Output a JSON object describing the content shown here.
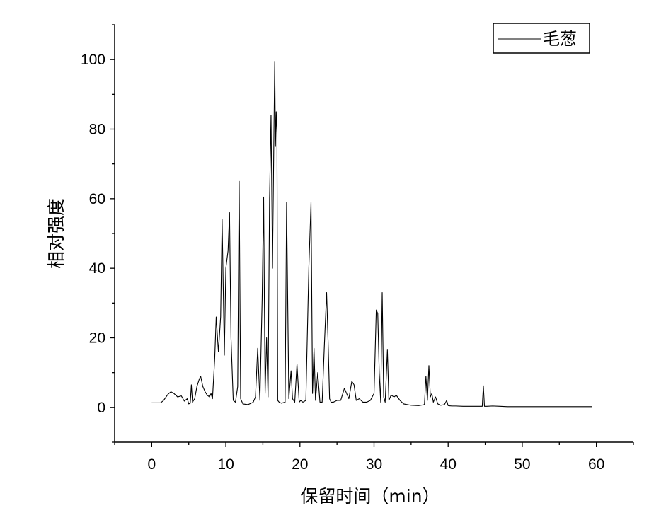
{
  "chart_data": {
    "type": "line",
    "xlabel": "保留时间（min）",
    "ylabel": "相对强度",
    "xlim": [
      -5,
      65
    ],
    "ylim": [
      -10,
      110
    ],
    "xticks": [
      0,
      10,
      20,
      30,
      40,
      50,
      60
    ],
    "yticks": [
      0,
      20,
      40,
      60,
      80,
      100
    ],
    "grid": false,
    "legend_position": "top-right",
    "series": [
      {
        "name": "毛葱",
        "color": "#000000",
        "x": [
          0.0,
          1.2,
          1.6,
          2.2,
          2.6,
          3.0,
          3.5,
          4.0,
          4.4,
          4.8,
          5.0,
          5.2,
          5.35,
          5.5,
          5.8,
          6.1,
          6.4,
          6.6,
          6.9,
          7.2,
          7.5,
          7.8,
          8.0,
          8.2,
          8.5,
          8.7,
          9.0,
          9.3,
          9.5,
          9.8,
          10.0,
          10.3,
          10.5,
          10.7,
          11.0,
          11.3,
          11.6,
          11.8,
          12.0,
          12.3,
          13.0,
          13.7,
          14.0,
          14.3,
          14.6,
          14.9,
          15.1,
          15.3,
          15.5,
          15.7,
          15.9,
          16.1,
          16.3,
          16.5,
          16.6,
          16.7,
          16.8,
          16.9,
          17.0,
          17.2,
          17.5,
          18.0,
          18.2,
          18.5,
          18.8,
          19.0,
          19.3,
          19.6,
          19.9,
          20.1,
          20.4,
          20.8,
          21.2,
          21.5,
          21.7,
          21.9,
          22.1,
          22.4,
          22.7,
          23.0,
          23.3,
          23.6,
          23.8,
          24.0,
          24.2,
          24.5,
          25.0,
          25.5,
          26.0,
          26.3,
          26.6,
          27.0,
          27.3,
          27.6,
          28.0,
          28.5,
          29.0,
          29.5,
          30.0,
          30.3,
          30.5,
          30.7,
          30.9,
          31.1,
          31.3,
          31.5,
          31.8,
          32.0,
          32.3,
          32.7,
          33.0,
          33.5,
          34.0,
          34.5,
          35.0,
          36.0,
          36.8,
          37.0,
          37.2,
          37.4,
          37.6,
          37.8,
          38.0,
          38.3,
          38.6,
          39.0,
          39.5,
          39.8,
          40.0,
          40.5,
          41.0,
          42.0,
          43.0,
          44.0,
          44.6,
          44.75,
          44.9,
          45.2,
          46.0,
          47.0,
          48.0,
          50.0,
          52.0,
          54.0,
          56.0,
          58.0,
          59.4
        ],
        "y": [
          1.3,
          1.3,
          2.0,
          3.8,
          4.5,
          4.0,
          3.0,
          3.3,
          1.8,
          2.5,
          1.0,
          1.2,
          6.5,
          1.5,
          2.5,
          6.0,
          8.0,
          9.0,
          6.0,
          4.5,
          3.5,
          3.0,
          4.0,
          2.5,
          14.0,
          26.0,
          16.0,
          26.0,
          54.0,
          15.0,
          40.0,
          45.0,
          56.0,
          20.0,
          2.0,
          1.5,
          6.0,
          65.0,
          2.5,
          1.0,
          0.8,
          1.5,
          3.0,
          17.0,
          2.0,
          31.0,
          60.5,
          4.0,
          20.0,
          3.0,
          60.0,
          84.0,
          40.0,
          81.0,
          99.5,
          75.0,
          85.0,
          79.0,
          2.0,
          1.5,
          1.2,
          1.5,
          59.0,
          2.5,
          10.5,
          2.5,
          1.5,
          12.5,
          1.5,
          2.0,
          1.5,
          2.0,
          40.0,
          59.0,
          4.0,
          17.0,
          2.0,
          10.0,
          1.5,
          1.5,
          18.0,
          33.0,
          19.0,
          2.5,
          1.5,
          1.5,
          2.0,
          2.0,
          5.5,
          4.0,
          2.5,
          7.5,
          6.5,
          2.0,
          2.5,
          1.5,
          1.5,
          2.0,
          4.0,
          28.0,
          27.0,
          10.0,
          1.5,
          33.0,
          3.0,
          1.5,
          16.5,
          2.0,
          3.5,
          3.0,
          3.5,
          2.0,
          1.0,
          0.8,
          0.6,
          0.5,
          0.8,
          9.0,
          2.0,
          12.0,
          3.0,
          4.0,
          1.5,
          3.0,
          1.0,
          0.6,
          0.8,
          2.0,
          0.5,
          0.4,
          0.4,
          0.3,
          0.3,
          0.3,
          0.3,
          6.2,
          0.3,
          0.3,
          0.4,
          0.3,
          0.2,
          0.2,
          0.2,
          0.2,
          0.2,
          0.2,
          0.2
        ]
      }
    ]
  }
}
